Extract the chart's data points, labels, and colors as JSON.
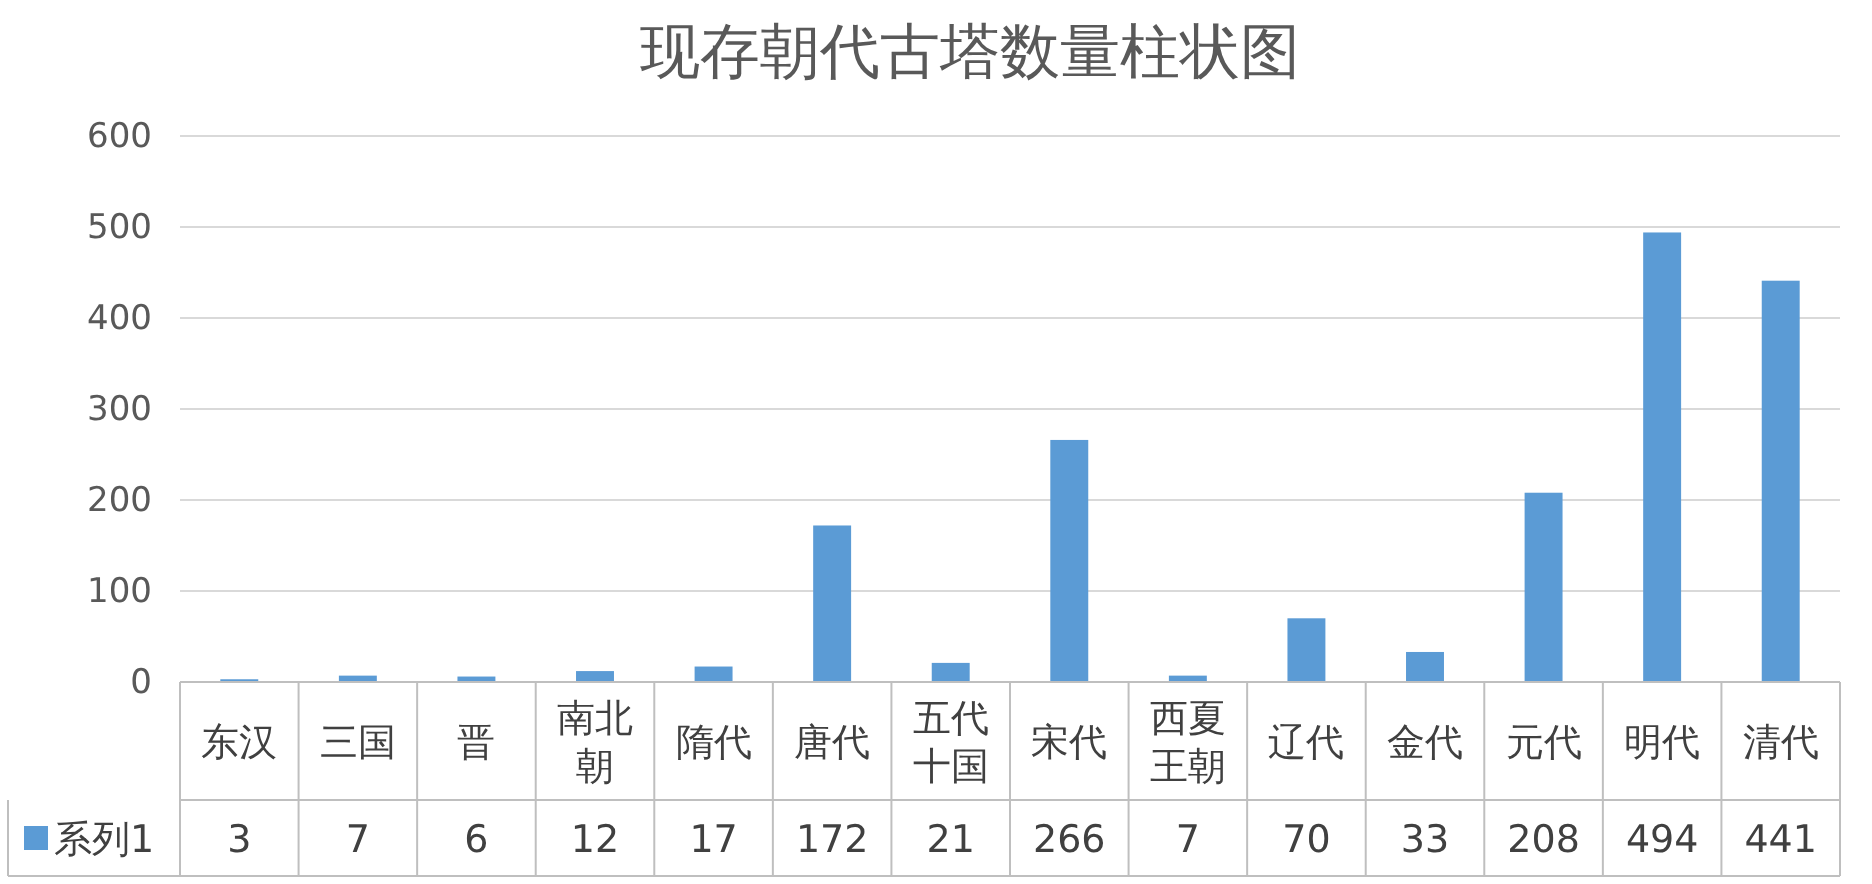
{
  "chart_data": {
    "type": "bar",
    "title": "现存朝代古塔数量柱状图",
    "categories": [
      "东汉",
      "三国",
      "晋",
      "南北朝",
      "隋代",
      "唐代",
      "五代十国",
      "宋代",
      "西夏王朝",
      "辽代",
      "金代",
      "元代",
      "明代",
      "清代"
    ],
    "series": [
      {
        "name": "系列1",
        "color": "#5b9bd5",
        "values": [
          3,
          7,
          6,
          12,
          17,
          172,
          21,
          266,
          7,
          70,
          33,
          208,
          494,
          441
        ]
      }
    ],
    "ylim": [
      0,
      600
    ],
    "yticks": [
      0,
      100,
      200,
      300,
      400,
      500,
      600
    ],
    "grid": "y",
    "data_labels": true,
    "legend": "bottom"
  }
}
